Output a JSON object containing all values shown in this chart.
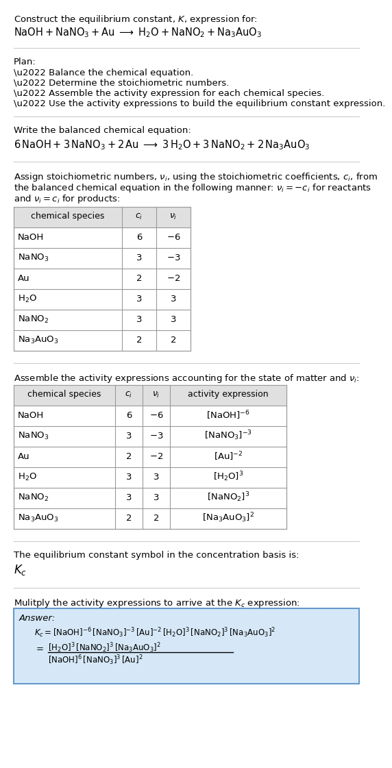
{
  "bg_color": "#ffffff",
  "text_color": "#000000",
  "title_line1": "Construct the equilibrium constant, $K$, expression for:",
  "title_line2": "$\\mathrm{NaOH + NaNO_3 + Au} \\;\\longrightarrow\\; \\mathrm{H_2O + NaNO_2 + Na_3AuO_3}$",
  "plan_header": "Plan:",
  "plan_items": [
    "\\u2022 Balance the chemical equation.",
    "\\u2022 Determine the stoichiometric numbers.",
    "\\u2022 Assemble the activity expression for each chemical species.",
    "\\u2022 Use the activity expressions to build the equilibrium constant expression."
  ],
  "balanced_header": "Write the balanced chemical equation:",
  "balanced_eq": "$6\\,\\mathrm{NaOH} + 3\\,\\mathrm{NaNO_3} + 2\\,\\mathrm{Au} \\;\\longrightarrow\\; 3\\,\\mathrm{H_2O} + 3\\,\\mathrm{NaNO_2} + 2\\,\\mathrm{Na_3AuO_3}$",
  "stoich_intro": "Assign stoichiometric numbers, $\\nu_i$, using the stoichiometric coefficients, $c_i$, from the balanced chemical equation in the following manner: $\\nu_i = -c_i$ for reactants and $\\nu_i = c_i$ for products:",
  "table1_cols": [
    "chemical species",
    "$c_i$",
    "$\\nu_i$"
  ],
  "table1_rows": [
    [
      "NaOH",
      "6",
      "$-6$"
    ],
    [
      "$\\mathrm{NaNO_3}$",
      "3",
      "$-3$"
    ],
    [
      "Au",
      "2",
      "$-2$"
    ],
    [
      "$\\mathrm{H_2O}$",
      "3",
      "3"
    ],
    [
      "$\\mathrm{NaNO_2}$",
      "3",
      "3"
    ],
    [
      "$\\mathrm{Na_3AuO_3}$",
      "2",
      "2"
    ]
  ],
  "activity_header": "Assemble the activity expressions accounting for the state of matter and $\\nu_i$:",
  "table2_cols": [
    "chemical species",
    "$c_i$",
    "$\\nu_i$",
    "activity expression"
  ],
  "table2_rows": [
    [
      "NaOH",
      "6",
      "$-6$",
      "$[\\mathrm{NaOH}]^{-6}$"
    ],
    [
      "$\\mathrm{NaNO_3}$",
      "3",
      "$-3$",
      "$[\\mathrm{NaNO_3}]^{-3}$"
    ],
    [
      "Au",
      "2",
      "$-2$",
      "$[\\mathrm{Au}]^{-2}$"
    ],
    [
      "$\\mathrm{H_2O}$",
      "3",
      "3",
      "$[\\mathrm{H_2O}]^{3}$"
    ],
    [
      "$\\mathrm{NaNO_2}$",
      "3",
      "3",
      "$[\\mathrm{NaNO_2}]^{3}$"
    ],
    [
      "$\\mathrm{Na_3AuO_3}$",
      "2",
      "2",
      "$[\\mathrm{Na_3AuO_3}]^{2}$"
    ]
  ],
  "kc_symbol_header": "The equilibrium constant symbol in the concentration basis is:",
  "kc_symbol": "$K_c$",
  "multiply_header": "Mulitply the activity expressions to arrive at the $K_c$ expression:",
  "answer_label": "Answer:",
  "answer_line1": "$K_c = [\\mathrm{NaOH}]^{-6}\\,[\\mathrm{NaNO_3}]^{-3}\\,[\\mathrm{Au}]^{-2}\\,[\\mathrm{H_2O}]^{3}\\,[\\mathrm{NaNO_2}]^{3}\\,[\\mathrm{Na_3AuO_3}]^{2}$",
  "answer_eq": "$=$",
  "answer_num": "$[\\mathrm{H_2O}]^{3}\\,[\\mathrm{NaNO_2}]^{3}\\,[\\mathrm{Na_3AuO_3}]^{2}$",
  "answer_den": "$[\\mathrm{NaOH}]^{6}\\,[\\mathrm{NaNO_3}]^{3}\\,[\\mathrm{Au}]^{2}$",
  "answer_box_color": "#d6e8f7",
  "answer_box_border": "#6699cc",
  "table_header_bg": "#e0e0e0",
  "table_border": "#999999",
  "hline_color": "#cccccc"
}
